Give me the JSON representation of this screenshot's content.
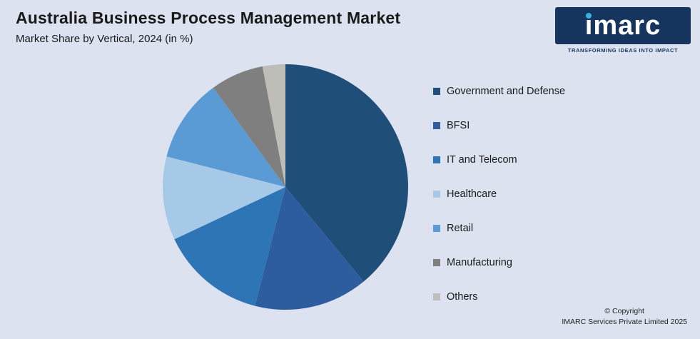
{
  "page": {
    "title": "Australia Business Process Management Market",
    "subtitle": "Market Share by Vertical, 2024 (in %)",
    "background_color": "#dce2f0"
  },
  "logo": {
    "text": "imarc",
    "tagline": "TRANSFORMING IDEAS INTO IMPACT",
    "box_color": "#16355e",
    "dot_color": "#35b4e3"
  },
  "footer": {
    "copyright_line1": "© Copyright",
    "copyright_line2": "IMARC Services Private Limited 2025"
  },
  "chart_data": {
    "type": "pie",
    "title": "Australia Business Process Management Market",
    "subtitle": "Market Share by Vertical, 2024 (in %)",
    "legend_position": "right",
    "start_angle_deg": 0,
    "direction": "clockwise",
    "categories": [
      "Government and Defense",
      "BFSI",
      "IT and Telecom",
      "Healthcare",
      "Retail",
      "Manufacturing",
      "Others"
    ],
    "values": [
      39,
      15,
      14,
      11,
      11,
      7,
      3
    ],
    "colors": [
      "#1f4e79",
      "#2e5d9f",
      "#2e75b6",
      "#a6c9e8",
      "#5b9bd5",
      "#7f7f7f",
      "#bfbdb8"
    ]
  }
}
